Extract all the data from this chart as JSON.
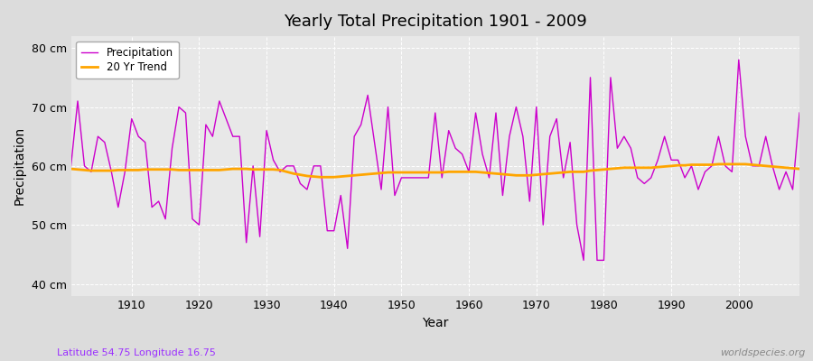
{
  "title": "Yearly Total Precipitation 1901 - 2009",
  "xlabel": "Year",
  "ylabel": "Precipitation",
  "subtitle": "Latitude 54.75 Longitude 16.75",
  "watermark": "worldspecies.org",
  "precip_color": "#CC00CC",
  "trend_color": "#FFA500",
  "bg_color": "#DCDCDC",
  "plot_bg_color": "#E8E8E8",
  "ylim": [
    38,
    82
  ],
  "yticks": [
    40,
    50,
    60,
    70,
    80
  ],
  "ytick_labels": [
    "40 cm",
    "50 cm",
    "60 cm",
    "70 cm",
    "80 cm"
  ],
  "years": [
    1901,
    1902,
    1903,
    1904,
    1905,
    1906,
    1907,
    1908,
    1909,
    1910,
    1911,
    1912,
    1913,
    1914,
    1915,
    1916,
    1917,
    1918,
    1919,
    1920,
    1921,
    1922,
    1923,
    1924,
    1925,
    1926,
    1927,
    1928,
    1929,
    1930,
    1931,
    1932,
    1933,
    1934,
    1935,
    1936,
    1937,
    1938,
    1939,
    1940,
    1941,
    1942,
    1943,
    1944,
    1945,
    1946,
    1947,
    1948,
    1949,
    1950,
    1951,
    1952,
    1953,
    1954,
    1955,
    1956,
    1957,
    1958,
    1959,
    1960,
    1961,
    1962,
    1963,
    1964,
    1965,
    1966,
    1967,
    1968,
    1969,
    1970,
    1971,
    1972,
    1973,
    1974,
    1975,
    1976,
    1977,
    1978,
    1979,
    1980,
    1981,
    1982,
    1983,
    1984,
    1985,
    1986,
    1987,
    1988,
    1989,
    1990,
    1991,
    1992,
    1993,
    1994,
    1995,
    1996,
    1997,
    1998,
    1999,
    2000,
    2001,
    2002,
    2003,
    2004,
    2005,
    2006,
    2007,
    2008,
    2009
  ],
  "precip": [
    60,
    71,
    60,
    59,
    65,
    64,
    59,
    53,
    59,
    68,
    65,
    64,
    53,
    54,
    51,
    63,
    70,
    69,
    51,
    50,
    67,
    65,
    71,
    68,
    65,
    65,
    47,
    60,
    48,
    66,
    61,
    59,
    60,
    60,
    57,
    56,
    60,
    60,
    49,
    49,
    55,
    46,
    65,
    67,
    72,
    64,
    56,
    70,
    55,
    58,
    58,
    58,
    58,
    58,
    69,
    58,
    66,
    63,
    62,
    59,
    69,
    62,
    58,
    69,
    55,
    65,
    70,
    65,
    54,
    70,
    50,
    65,
    68,
    58,
    64,
    50,
    44,
    75,
    44,
    44,
    75,
    63,
    65,
    63,
    58,
    57,
    58,
    61,
    65,
    61,
    61,
    58,
    60,
    56,
    59,
    60,
    65,
    60,
    59,
    78,
    65,
    60,
    60,
    65,
    60,
    56,
    59,
    56,
    69
  ],
  "trend": [
    59.5,
    59.4,
    59.3,
    59.2,
    59.2,
    59.2,
    59.2,
    59.3,
    59.3,
    59.3,
    59.3,
    59.4,
    59.4,
    59.4,
    59.4,
    59.4,
    59.3,
    59.3,
    59.3,
    59.3,
    59.3,
    59.3,
    59.3,
    59.4,
    59.5,
    59.5,
    59.5,
    59.4,
    59.4,
    59.4,
    59.4,
    59.3,
    59.0,
    58.7,
    58.5,
    58.3,
    58.2,
    58.1,
    58.1,
    58.1,
    58.2,
    58.3,
    58.4,
    58.5,
    58.6,
    58.7,
    58.8,
    58.9,
    58.9,
    58.9,
    58.9,
    58.9,
    58.9,
    58.9,
    58.9,
    58.9,
    59.0,
    59.0,
    59.0,
    59.0,
    59.0,
    58.9,
    58.8,
    58.7,
    58.6,
    58.5,
    58.4,
    58.4,
    58.4,
    58.5,
    58.6,
    58.7,
    58.8,
    58.9,
    59.0,
    59.0,
    59.0,
    59.2,
    59.3,
    59.4,
    59.5,
    59.6,
    59.7,
    59.7,
    59.7,
    59.7,
    59.7,
    59.8,
    59.9,
    60.0,
    60.1,
    60.1,
    60.2,
    60.2,
    60.2,
    60.2,
    60.3,
    60.3,
    60.3,
    60.3,
    60.3,
    60.2,
    60.1,
    60.0,
    59.9,
    59.8,
    59.7,
    59.6,
    59.5
  ]
}
